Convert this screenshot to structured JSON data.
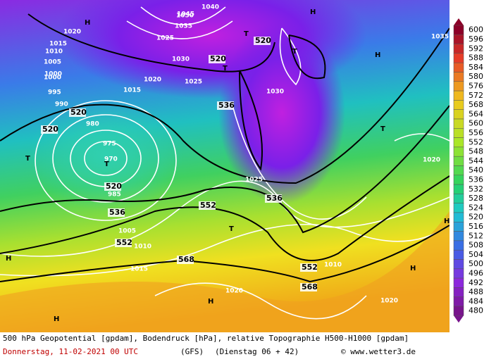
{
  "map": {
    "labels": [
      "1020",
      "1015",
      "1010",
      "1005",
      "1000",
      "995",
      "990",
      "985",
      "980",
      "975",
      "970",
      "1025",
      "1030",
      "1035",
      "1040",
      "1045",
      "1050",
      "520",
      "520",
      "520",
      "520",
      "520",
      "536",
      "536",
      "536",
      "552",
      "552",
      "552",
      "568",
      "568",
      "1020",
      "1025",
      "1015",
      "1010",
      "1005",
      "1020",
      "1015",
      "1020",
      "1035",
      "1030",
      "1020",
      "1010",
      "1025",
      "1000"
    ],
    "markers": [
      "H",
      "H",
      "H",
      "H",
      "H",
      "H",
      "H",
      "H",
      "T",
      "T",
      "T",
      "T",
      "T",
      "T",
      "T"
    ]
  },
  "colorbar": {
    "ticks": [
      600,
      596,
      592,
      588,
      584,
      580,
      576,
      572,
      568,
      564,
      560,
      556,
      552,
      548,
      544,
      540,
      536,
      532,
      528,
      524,
      520,
      516,
      512,
      508,
      504,
      500,
      496,
      492,
      488,
      484,
      480
    ]
  },
  "footer": {
    "line1": "500 hPa Geopotential [gpdam], Bodendruck [hPa], relative Topographie H500-H1000 [gpdam]",
    "date": "Donnerstag, 11-02-2021  00 UTC",
    "model": "(GFS)",
    "run": "(Dienstag 06 + 42)",
    "credit": "© www.wetter3.de"
  }
}
